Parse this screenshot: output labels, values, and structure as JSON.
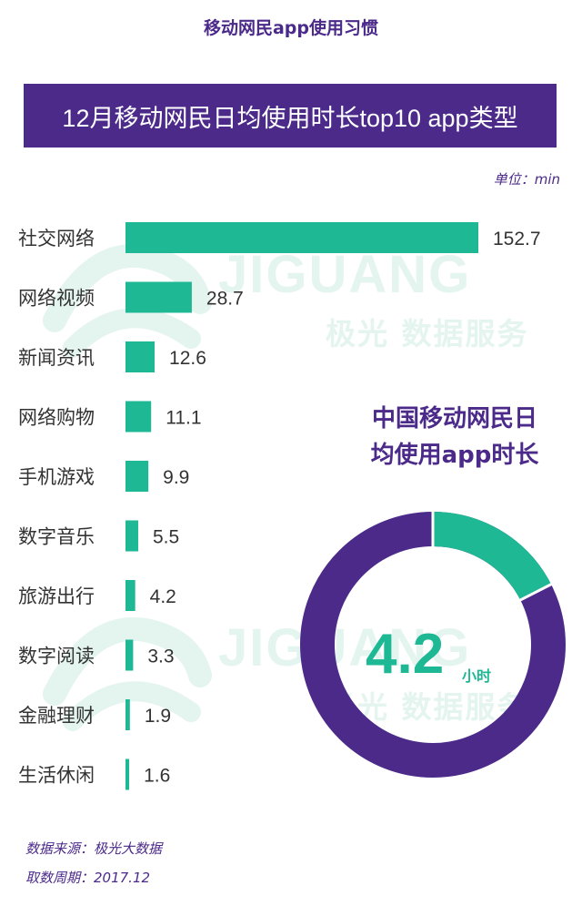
{
  "header": {
    "page_title": "移动网民app使用习惯",
    "banner_title": "12月移动网民日均使用时长top10 app类型",
    "unit_label": "单位：min"
  },
  "watermark": {
    "brand": "JIGUANG",
    "sub": "极光 数据服务"
  },
  "colors": {
    "purple": "#4b2a8a",
    "green": "#1fb894",
    "watermark": "#e4f4ef"
  },
  "chart_data": [
    {
      "type": "bar",
      "orientation": "horizontal",
      "categories": [
        "社交网络",
        "网络视频",
        "新闻资讯",
        "网络购物",
        "手机游戏",
        "数字音乐",
        "旅游出行",
        "数字阅读",
        "金融理财",
        "生活休闲"
      ],
      "values": [
        152.7,
        28.7,
        12.6,
        11.1,
        9.9,
        5.5,
        4.2,
        3.3,
        1.9,
        1.6
      ],
      "value_labels": [
        "152.7",
        "28.7",
        "12.6",
        "11.1",
        "9.9",
        "5.5",
        "4.2",
        "3.3",
        "1.9",
        "1.6"
      ],
      "title": "12月移动网民日均使用时长top10 app类型",
      "unit": "单位：min",
      "color": "#1fb894"
    },
    {
      "type": "pie",
      "style": "donut",
      "title": "中国移动网民日均使用app时长",
      "title_lines": [
        "中国移动网民日",
        "均使用app时长"
      ],
      "value": 4.2,
      "value_label": "4.2",
      "unit": "小时",
      "total": 24,
      "colors": {
        "highlight": "#1fb894",
        "rest": "#4b2a8a"
      }
    }
  ],
  "footer": {
    "source": "数据来源：极光大数据",
    "period": "取数周期：2017.12"
  }
}
